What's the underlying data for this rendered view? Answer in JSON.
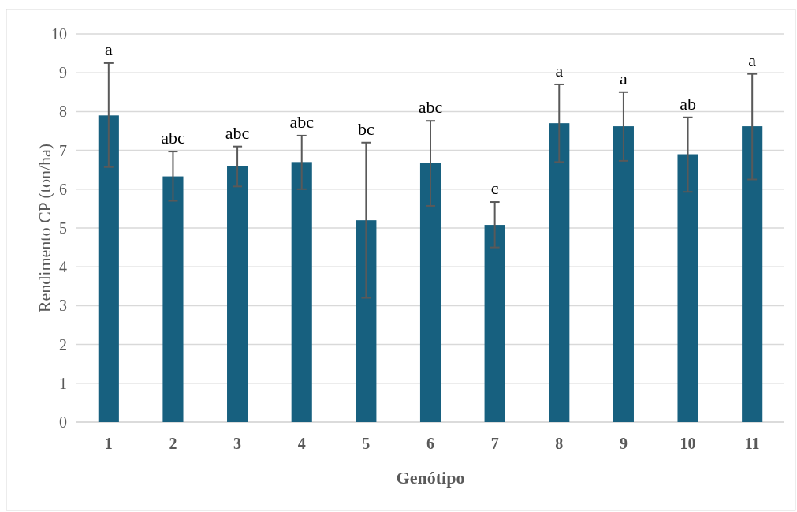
{
  "chart_data": {
    "type": "bar",
    "xlabel": "Genótipo",
    "ylabel": "Rendimento CP (ton/ha)",
    "categories": [
      "1",
      "2",
      "3",
      "4",
      "5",
      "6",
      "7",
      "8",
      "9",
      "10",
      "11"
    ],
    "values": [
      7.9,
      6.33,
      6.6,
      6.7,
      5.2,
      6.67,
      5.08,
      7.7,
      7.62,
      6.9,
      7.62
    ],
    "errors": [
      [
        6.57,
        9.25
      ],
      [
        5.7,
        6.97
      ],
      [
        6.07,
        7.1
      ],
      [
        6.0,
        7.38
      ],
      [
        3.2,
        7.2
      ],
      [
        5.57,
        7.76
      ],
      [
        4.5,
        5.67
      ],
      [
        6.7,
        8.7
      ],
      [
        6.73,
        8.5
      ],
      [
        5.93,
        7.85
      ],
      [
        6.25,
        8.97
      ]
    ],
    "color": "#17607f",
    "annotations": [
      {
        "text": "a",
        "x": "1",
        "y": 9.25
      },
      {
        "text": "abc",
        "x": "2",
        "y": 6.97
      },
      {
        "text": "abc",
        "x": "3",
        "y": 7.1
      },
      {
        "text": "abc",
        "x": "4",
        "y": 7.38
      },
      {
        "text": "bc",
        "x": "5",
        "y": 7.2
      },
      {
        "text": "abc",
        "x": "6",
        "y": 7.76
      },
      {
        "text": "c",
        "x": "7",
        "y": 5.67
      },
      {
        "text": "a",
        "x": "8",
        "y": 8.7
      },
      {
        "text": "a",
        "x": "9",
        "y": 8.5
      },
      {
        "text": "ab",
        "x": "10",
        "y": 7.85
      },
      {
        "text": "a",
        "x": "11",
        "y": 8.97
      }
    ],
    "ylim": [
      0,
      10
    ],
    "yticks": [
      0,
      1,
      2,
      3,
      4,
      5,
      6,
      7,
      8,
      9,
      10
    ],
    "grid": "y"
  }
}
